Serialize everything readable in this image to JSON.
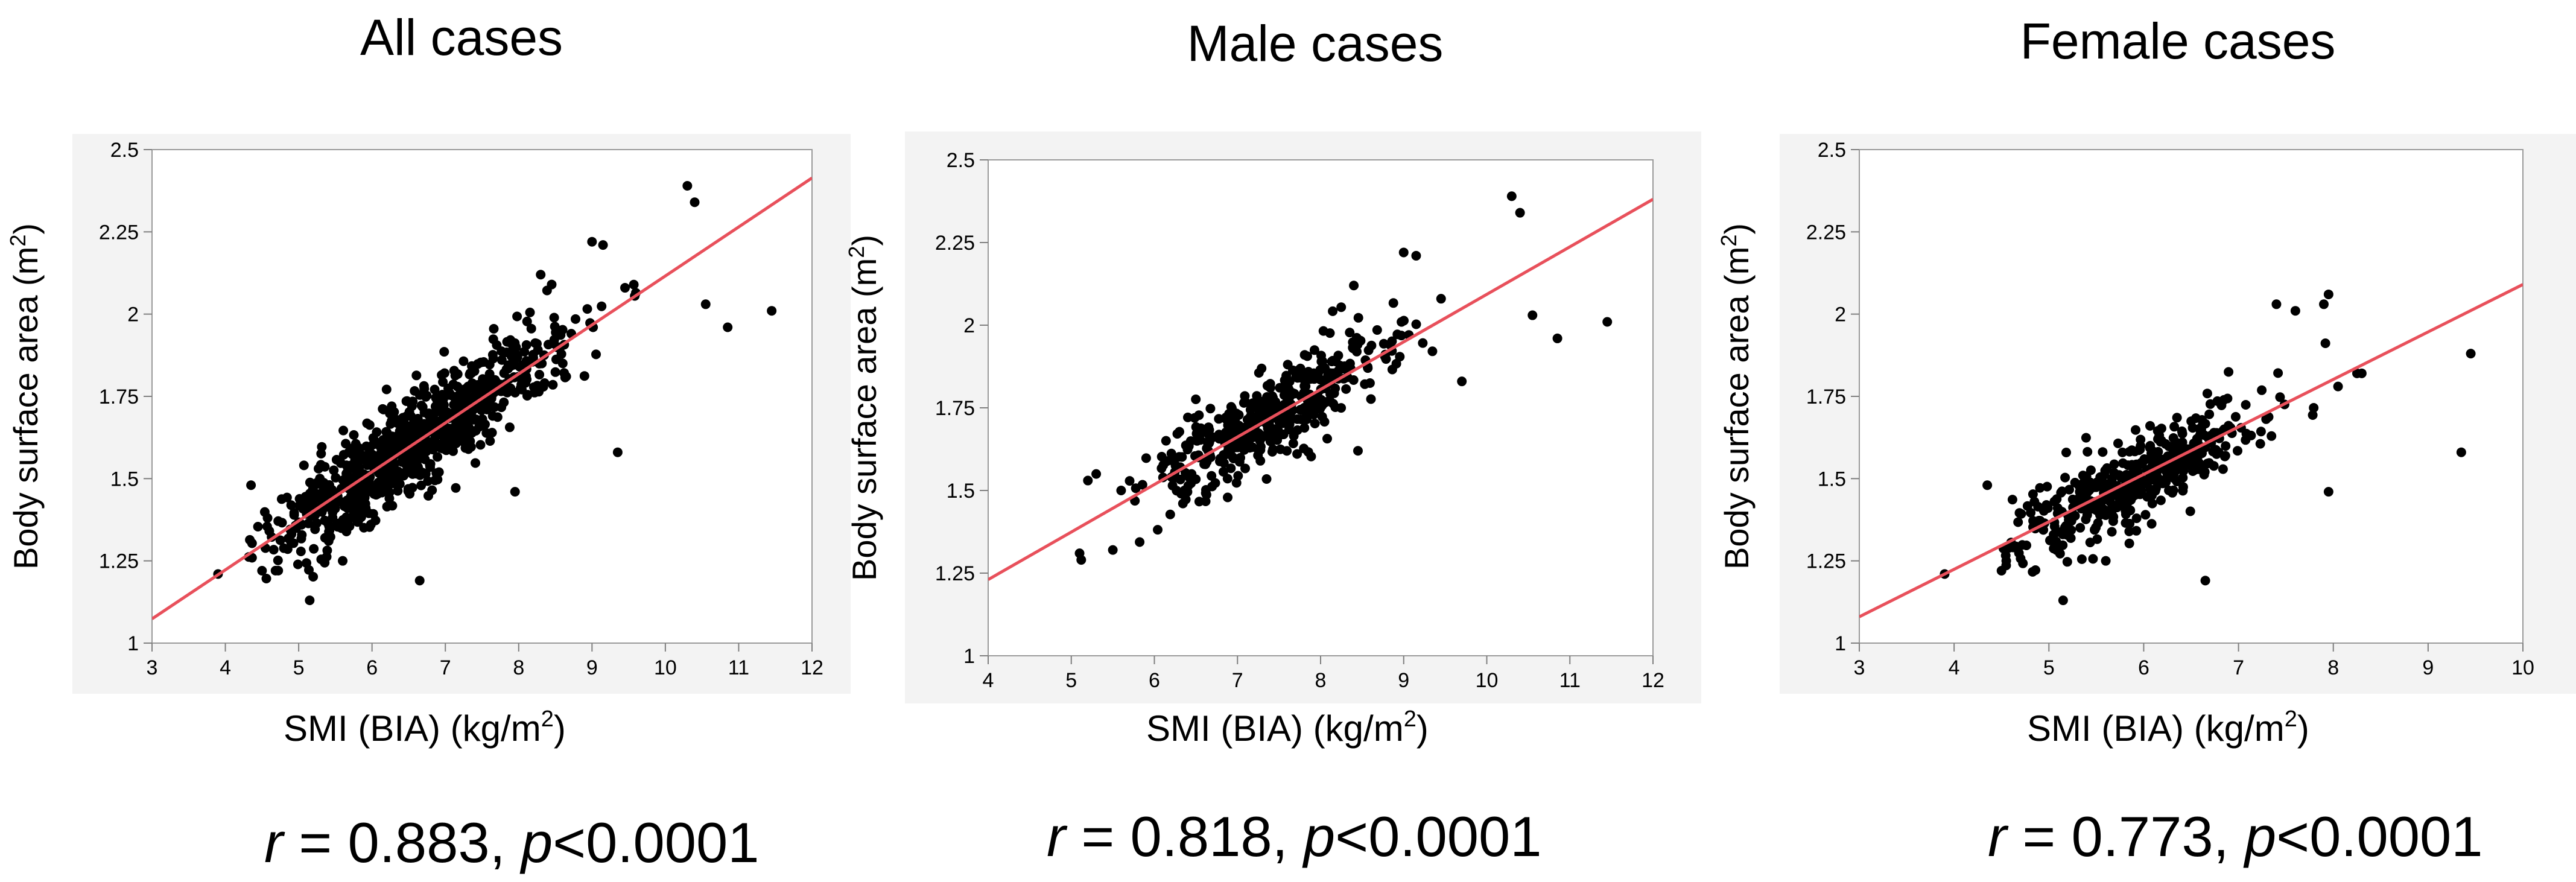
{
  "colors": {
    "points": "#000000",
    "regression": "#e8505b",
    "panel_background": "#f3f3f3",
    "plot_background": "#ffffff"
  },
  "chart_data": [
    {
      "id": "all",
      "type": "scatter",
      "title": "All cases",
      "xlabel_main": "SMI (BIA) (kg/m",
      "xlabel_sup": "2",
      "xlabel_tail": ")",
      "ylabel_main": "Body surface area (m",
      "ylabel_sup": "2",
      "ylabel_tail": ")",
      "xlim": [
        3,
        12
      ],
      "ylim": [
        1,
        2.5
      ],
      "xticks": [
        3,
        4,
        5,
        6,
        7,
        8,
        9,
        10,
        11,
        12
      ],
      "xtick_labels": [
        "3",
        "4",
        "5",
        "6",
        "7",
        "8",
        "9",
        "10",
        "11",
        "12"
      ],
      "yticks": [
        1,
        1.25,
        1.5,
        1.75,
        2,
        2.25,
        2.5
      ],
      "ytick_labels": [
        "1",
        "1.25",
        "1.5",
        "1.75",
        "2",
        "2.25",
        "2.5"
      ],
      "regression": {
        "slope": 0.1489,
        "intercept": 0.627
      },
      "cloud": {
        "x_center": 6.6,
        "x_sd": 1.0,
        "x_min": 4.3,
        "x_max": 9.6,
        "resid_sd": 0.07,
        "n": 850,
        "seed": 11
      },
      "points": [
        {
          "x": 3.9,
          "y": 1.21
        },
        {
          "x": 4.35,
          "y": 1.48
        },
        {
          "x": 4.5,
          "y": 1.22
        },
        {
          "x": 5.15,
          "y": 1.13
        },
        {
          "x": 5.6,
          "y": 1.25
        },
        {
          "x": 6.65,
          "y": 1.19
        },
        {
          "x": 7.95,
          "y": 1.46
        },
        {
          "x": 9.35,
          "y": 1.58
        },
        {
          "x": 9.0,
          "y": 2.22
        },
        {
          "x": 9.15,
          "y": 2.21
        },
        {
          "x": 9.45,
          "y": 2.08
        },
        {
          "x": 10.3,
          "y": 2.39
        },
        {
          "x": 10.4,
          "y": 2.34
        },
        {
          "x": 10.55,
          "y": 2.03
        },
        {
          "x": 10.85,
          "y": 1.96
        },
        {
          "x": 11.45,
          "y": 2.01
        },
        {
          "x": 8.3,
          "y": 2.12
        },
        {
          "x": 8.45,
          "y": 2.09
        }
      ],
      "stat_r": "r",
      "stat_r_value": " = 0.883,  ",
      "stat_p": "p",
      "stat_p_value": "<0.0001"
    },
    {
      "id": "male",
      "type": "scatter",
      "title": "Male cases",
      "xlabel_main": "SMI (BIA) (kg/m",
      "xlabel_sup": "2",
      "xlabel_tail": ")",
      "ylabel_main": "Body surface area (m",
      "ylabel_sup": "2",
      "ylabel_tail": ")",
      "xlim": [
        4,
        12
      ],
      "ylim": [
        1,
        2.5
      ],
      "xticks": [
        4,
        5,
        6,
        7,
        8,
        9,
        10,
        11,
        12
      ],
      "xtick_labels": [
        "4",
        "5",
        "6",
        "7",
        "8",
        "9",
        "10",
        "11",
        "12"
      ],
      "yticks": [
        1,
        1.25,
        1.5,
        1.75,
        2,
        2.25,
        2.5
      ],
      "ytick_labels": [
        "1",
        "1.25",
        "1.5",
        "1.75",
        "2",
        "2.25",
        "2.5"
      ],
      "regression": {
        "slope": 0.1438,
        "intercept": 0.6552
      },
      "cloud": {
        "x_center": 7.3,
        "x_sd": 0.75,
        "x_min": 5.7,
        "x_max": 9.4,
        "resid_sd": 0.065,
        "n": 420,
        "seed": 23
      },
      "points": [
        {
          "x": 5.1,
          "y": 1.31
        },
        {
          "x": 5.12,
          "y": 1.29
        },
        {
          "x": 5.2,
          "y": 1.53
        },
        {
          "x": 5.3,
          "y": 1.55
        },
        {
          "x": 5.5,
          "y": 1.32
        },
        {
          "x": 5.6,
          "y": 1.5
        },
        {
          "x": 9.0,
          "y": 2.22
        },
        {
          "x": 9.15,
          "y": 2.21
        },
        {
          "x": 9.45,
          "y": 2.08
        },
        {
          "x": 9.7,
          "y": 1.83
        },
        {
          "x": 10.3,
          "y": 2.39
        },
        {
          "x": 10.4,
          "y": 2.34
        },
        {
          "x": 10.55,
          "y": 2.03
        },
        {
          "x": 10.85,
          "y": 1.96
        },
        {
          "x": 11.45,
          "y": 2.01
        },
        {
          "x": 8.4,
          "y": 2.12
        },
        {
          "x": 8.45,
          "y": 1.62
        }
      ],
      "stat_r": "r",
      "stat_r_value": " = 0.818, ",
      "stat_p": "p",
      "stat_p_value": "<0.0001"
    },
    {
      "id": "female",
      "type": "scatter",
      "title": "Female cases",
      "xlabel_main": "SMI (BIA) (kg/m",
      "xlabel_sup": "2",
      "xlabel_tail": ")",
      "ylabel_main": "Body surface area (m",
      "ylabel_sup": "2",
      "ylabel_tail": ")",
      "xlim": [
        3,
        10
      ],
      "ylim": [
        1,
        2.5
      ],
      "xticks": [
        3,
        4,
        5,
        6,
        7,
        8,
        9,
        10
      ],
      "xtick_labels": [
        "3",
        "4",
        "5",
        "6",
        "7",
        "8",
        "9",
        "10"
      ],
      "yticks": [
        1,
        1.25,
        1.5,
        1.75,
        2,
        2.25,
        2.5
      ],
      "ytick_labels": [
        "1",
        "1.25",
        "1.5",
        "1.75",
        "2",
        "2.25",
        "2.5"
      ],
      "regression": {
        "slope": 0.1443,
        "intercept": 0.6471
      },
      "cloud": {
        "x_center": 5.9,
        "x_sd": 0.65,
        "x_min": 4.5,
        "x_max": 8.0,
        "resid_sd": 0.065,
        "n": 430,
        "seed": 37
      },
      "points": [
        {
          "x": 3.9,
          "y": 1.21
        },
        {
          "x": 4.35,
          "y": 1.48
        },
        {
          "x": 4.5,
          "y": 1.22
        },
        {
          "x": 4.55,
          "y": 1.25
        },
        {
          "x": 5.15,
          "y": 1.13
        },
        {
          "x": 5.6,
          "y": 1.25
        },
        {
          "x": 6.65,
          "y": 1.19
        },
        {
          "x": 7.95,
          "y": 1.46
        },
        {
          "x": 9.35,
          "y": 1.58
        },
        {
          "x": 9.45,
          "y": 1.88
        },
        {
          "x": 8.25,
          "y": 1.82
        },
        {
          "x": 8.3,
          "y": 1.82
        },
        {
          "x": 7.9,
          "y": 2.03
        },
        {
          "x": 7.95,
          "y": 2.06
        },
        {
          "x": 7.4,
          "y": 2.03
        },
        {
          "x": 7.6,
          "y": 2.01
        },
        {
          "x": 8.05,
          "y": 1.78
        }
      ],
      "stat_r": "r",
      "stat_r_value": " = 0.773, ",
      "stat_p": "p",
      "stat_p_value": "<0.0001"
    }
  ]
}
